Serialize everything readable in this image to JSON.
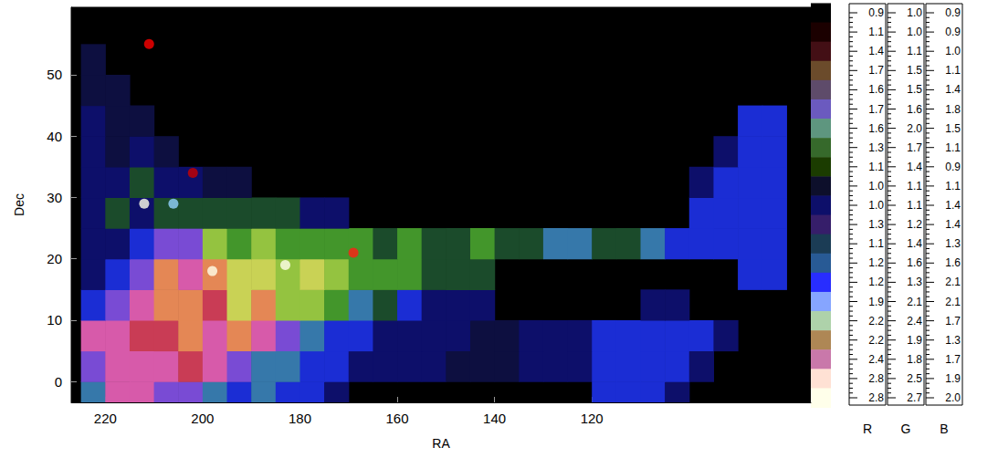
{
  "chart_data": {
    "type": "heatmap",
    "x_label": "RA",
    "y_label": "Dec",
    "xlim": [
      227,
      75
    ],
    "xticks": [
      220,
      200,
      180,
      160,
      140,
      120
    ],
    "ylim": [
      -3.4,
      61
    ],
    "yticks": [
      0,
      10,
      20,
      30,
      40,
      50
    ],
    "cell_size": 5,
    "cells": [
      [
        222.5,
        -2.5,
        1.3,
        1.8,
        1.7
      ],
      [
        217.5,
        -2.5,
        2.5,
        1.6,
        1.7
      ],
      [
        212.5,
        -2.5,
        2.5,
        1.6,
        1.7
      ],
      [
        207.5,
        -2.5,
        1.8,
        1.5,
        1.9
      ],
      [
        202.5,
        -2.5,
        1.8,
        1.5,
        1.9
      ],
      [
        197.5,
        -2.5,
        1.3,
        1.8,
        1.7
      ],
      [
        192.5,
        -2.5,
        1.1,
        1.3,
        1.9
      ],
      [
        187.5,
        -2.5,
        1.3,
        1.8,
        1.7
      ],
      [
        182.5,
        -2.5,
        1.1,
        1.3,
        1.9
      ],
      [
        177.5,
        -2.5,
        1.1,
        1.3,
        1.9
      ],
      [
        172.5,
        -2.5,
        1.0,
        1.1,
        1.4
      ],
      [
        117.5,
        -2.5,
        1.1,
        1.3,
        1.9
      ],
      [
        112.5,
        -2.5,
        1.1,
        1.3,
        1.9
      ],
      [
        107.5,
        -2.5,
        1.1,
        1.3,
        1.9
      ],
      [
        102.5,
        -2.5,
        1.0,
        1.1,
        1.4
      ],
      [
        222.5,
        2.5,
        1.8,
        1.5,
        1.9
      ],
      [
        217.5,
        2.5,
        2.5,
        1.6,
        1.7
      ],
      [
        212.5,
        2.5,
        2.5,
        1.6,
        1.7
      ],
      [
        207.5,
        2.5,
        2.5,
        1.6,
        1.7
      ],
      [
        202.5,
        2.5,
        2.4,
        1.4,
        1.3
      ],
      [
        197.5,
        2.5,
        2.5,
        1.6,
        1.7
      ],
      [
        192.5,
        2.5,
        1.8,
        1.5,
        1.9
      ],
      [
        187.5,
        2.5,
        1.3,
        1.8,
        1.7
      ],
      [
        182.5,
        2.5,
        1.3,
        1.8,
        1.7
      ],
      [
        177.5,
        2.5,
        1.1,
        1.3,
        1.9
      ],
      [
        172.5,
        2.5,
        1.1,
        1.3,
        1.9
      ],
      [
        167.5,
        2.5,
        1.0,
        1.1,
        1.4
      ],
      [
        162.5,
        2.5,
        1.0,
        1.1,
        1.4
      ],
      [
        157.5,
        2.5,
        1.0,
        1.1,
        1.4
      ],
      [
        152.5,
        2.5,
        1.0,
        1.1,
        1.4
      ],
      [
        147.5,
        2.5,
        1.0,
        1.1,
        1.2
      ],
      [
        142.5,
        2.5,
        1.0,
        1.1,
        1.2
      ],
      [
        137.5,
        2.5,
        1.0,
        1.1,
        1.2
      ],
      [
        132.5,
        2.5,
        1.0,
        1.1,
        1.4
      ],
      [
        127.5,
        2.5,
        1.0,
        1.1,
        1.4
      ],
      [
        122.5,
        2.5,
        1.0,
        1.1,
        1.4
      ],
      [
        117.5,
        2.5,
        1.1,
        1.3,
        1.9
      ],
      [
        112.5,
        2.5,
        1.1,
        1.3,
        1.9
      ],
      [
        107.5,
        2.5,
        1.1,
        1.3,
        1.9
      ],
      [
        102.5,
        2.5,
        1.1,
        1.3,
        1.9
      ],
      [
        97.5,
        2.5,
        1.0,
        1.1,
        1.4
      ],
      [
        222.5,
        7.5,
        2.5,
        1.6,
        1.7
      ],
      [
        217.5,
        7.5,
        2.5,
        1.6,
        1.7
      ],
      [
        212.5,
        7.5,
        2.4,
        1.4,
        1.3
      ],
      [
        207.5,
        7.5,
        2.4,
        1.4,
        1.3
      ],
      [
        202.5,
        7.5,
        2.6,
        1.9,
        1.3
      ],
      [
        197.5,
        7.5,
        2.5,
        1.6,
        1.7
      ],
      [
        192.5,
        7.5,
        2.6,
        1.9,
        1.3
      ],
      [
        187.5,
        7.5,
        2.5,
        1.6,
        1.7
      ],
      [
        182.5,
        7.5,
        1.8,
        1.5,
        1.9
      ],
      [
        177.5,
        7.5,
        1.3,
        1.8,
        1.7
      ],
      [
        172.5,
        7.5,
        1.1,
        1.3,
        1.9
      ],
      [
        167.5,
        7.5,
        1.1,
        1.3,
        1.9
      ],
      [
        162.5,
        7.5,
        1.0,
        1.1,
        1.4
      ],
      [
        157.5,
        7.5,
        1.0,
        1.1,
        1.4
      ],
      [
        152.5,
        7.5,
        1.0,
        1.1,
        1.4
      ],
      [
        147.5,
        7.5,
        1.0,
        1.1,
        1.4
      ],
      [
        142.5,
        7.5,
        1.0,
        1.1,
        1.2
      ],
      [
        137.5,
        7.5,
        1.0,
        1.1,
        1.2
      ],
      [
        132.5,
        7.5,
        1.0,
        1.1,
        1.4
      ],
      [
        127.5,
        7.5,
        1.0,
        1.1,
        1.4
      ],
      [
        122.5,
        7.5,
        1.0,
        1.1,
        1.4
      ],
      [
        117.5,
        7.5,
        1.1,
        1.3,
        1.9
      ],
      [
        112.5,
        7.5,
        1.1,
        1.3,
        1.9
      ],
      [
        107.5,
        7.5,
        1.1,
        1.3,
        1.9
      ],
      [
        102.5,
        7.5,
        1.1,
        1.3,
        1.9
      ],
      [
        97.5,
        7.5,
        1.1,
        1.3,
        1.9
      ],
      [
        92.5,
        7.5,
        1.0,
        1.1,
        1.4
      ],
      [
        222.5,
        12.5,
        1.1,
        1.3,
        1.9
      ],
      [
        217.5,
        12.5,
        1.8,
        1.5,
        1.9
      ],
      [
        212.5,
        12.5,
        2.5,
        1.6,
        1.7
      ],
      [
        207.5,
        12.5,
        2.6,
        1.9,
        1.3
      ],
      [
        202.5,
        12.5,
        2.6,
        1.9,
        1.3
      ],
      [
        197.5,
        12.5,
        2.4,
        1.4,
        1.3
      ],
      [
        192.5,
        12.5,
        2.4,
        2.4,
        1.3
      ],
      [
        187.5,
        12.5,
        2.6,
        1.9,
        1.3
      ],
      [
        182.5,
        12.5,
        2.0,
        2.3,
        1.2
      ],
      [
        177.5,
        12.5,
        2.0,
        2.3,
        1.2
      ],
      [
        172.5,
        12.5,
        1.4,
        2.0,
        1.1
      ],
      [
        167.5,
        12.5,
        1.3,
        1.8,
        1.7
      ],
      [
        162.5,
        12.5,
        1.1,
        1.5,
        1.1
      ],
      [
        157.5,
        12.5,
        1.1,
        1.3,
        1.9
      ],
      [
        152.5,
        12.5,
        1.0,
        1.1,
        1.4
      ],
      [
        147.5,
        12.5,
        1.0,
        1.1,
        1.4
      ],
      [
        142.5,
        12.5,
        1.0,
        1.1,
        1.4
      ],
      [
        107.5,
        12.5,
        1.0,
        1.1,
        1.4
      ],
      [
        102.5,
        12.5,
        1.0,
        1.1,
        1.4
      ],
      [
        222.5,
        17.5,
        1.0,
        1.1,
        1.4
      ],
      [
        217.5,
        17.5,
        1.1,
        1.3,
        1.9
      ],
      [
        212.5,
        17.5,
        1.8,
        1.5,
        1.9
      ],
      [
        207.5,
        17.5,
        2.6,
        1.9,
        1.3
      ],
      [
        202.5,
        17.5,
        2.5,
        1.6,
        1.7
      ],
      [
        197.5,
        17.5,
        2.6,
        1.9,
        1.3
      ],
      [
        192.5,
        17.5,
        2.4,
        2.4,
        1.3
      ],
      [
        187.5,
        17.5,
        2.4,
        2.4,
        1.3
      ],
      [
        182.5,
        17.5,
        2.0,
        2.3,
        1.2
      ],
      [
        177.5,
        17.5,
        2.4,
        2.4,
        1.3
      ],
      [
        172.5,
        17.5,
        2.0,
        2.3,
        1.2
      ],
      [
        167.5,
        17.5,
        1.4,
        2.0,
        1.1
      ],
      [
        162.5,
        17.5,
        1.4,
        2.0,
        1.1
      ],
      [
        157.5,
        17.5,
        1.4,
        2.0,
        1.1
      ],
      [
        152.5,
        17.5,
        1.1,
        1.5,
        1.1
      ],
      [
        147.5,
        17.5,
        1.1,
        1.5,
        1.1
      ],
      [
        142.5,
        17.5,
        1.1,
        1.5,
        1.1
      ],
      [
        87.5,
        17.5,
        1.1,
        1.3,
        1.9
      ],
      [
        82.5,
        17.5,
        1.1,
        1.3,
        1.9
      ],
      [
        222.5,
        22.5,
        1.0,
        1.1,
        1.4
      ],
      [
        217.5,
        22.5,
        1.0,
        1.1,
        1.4
      ],
      [
        212.5,
        22.5,
        1.1,
        1.3,
        1.9
      ],
      [
        207.5,
        22.5,
        1.8,
        1.5,
        1.9
      ],
      [
        202.5,
        22.5,
        1.8,
        1.5,
        1.9
      ],
      [
        197.5,
        22.5,
        2.0,
        2.3,
        1.2
      ],
      [
        192.5,
        22.5,
        1.4,
        2.0,
        1.1
      ],
      [
        187.5,
        22.5,
        2.0,
        2.3,
        1.2
      ],
      [
        182.5,
        22.5,
        1.4,
        2.0,
        1.1
      ],
      [
        177.5,
        22.5,
        1.4,
        2.0,
        1.1
      ],
      [
        172.5,
        22.5,
        1.4,
        2.0,
        1.1
      ],
      [
        167.5,
        22.5,
        1.4,
        2.0,
        1.1
      ],
      [
        162.5,
        22.5,
        1.1,
        1.5,
        1.1
      ],
      [
        157.5,
        22.5,
        1.4,
        2.0,
        1.1
      ],
      [
        152.5,
        22.5,
        1.1,
        1.5,
        1.1
      ],
      [
        147.5,
        22.5,
        1.1,
        1.5,
        1.1
      ],
      [
        142.5,
        22.5,
        1.4,
        2.0,
        1.1
      ],
      [
        137.5,
        22.5,
        1.1,
        1.5,
        1.1
      ],
      [
        132.5,
        22.5,
        1.1,
        1.5,
        1.1
      ],
      [
        127.5,
        22.5,
        1.3,
        1.8,
        1.7
      ],
      [
        122.5,
        22.5,
        1.3,
        1.8,
        1.7
      ],
      [
        117.5,
        22.5,
        1.1,
        1.5,
        1.1
      ],
      [
        112.5,
        22.5,
        1.1,
        1.5,
        1.1
      ],
      [
        107.5,
        22.5,
        1.3,
        1.8,
        1.7
      ],
      [
        102.5,
        22.5,
        1.1,
        1.3,
        1.9
      ],
      [
        97.5,
        22.5,
        1.1,
        1.3,
        1.9
      ],
      [
        92.5,
        22.5,
        1.1,
        1.3,
        1.9
      ],
      [
        87.5,
        22.5,
        1.1,
        1.3,
        1.9
      ],
      [
        82.5,
        22.5,
        1.1,
        1.3,
        1.9
      ],
      [
        222.5,
        27.5,
        1.0,
        1.1,
        1.4
      ],
      [
        217.5,
        27.5,
        1.1,
        1.5,
        1.1
      ],
      [
        212.5,
        27.5,
        1.0,
        1.1,
        1.4
      ],
      [
        207.5,
        27.5,
        1.1,
        1.5,
        1.1
      ],
      [
        202.5,
        27.5,
        1.1,
        1.5,
        1.1
      ],
      [
        197.5,
        27.5,
        1.1,
        1.5,
        1.1
      ],
      [
        192.5,
        27.5,
        1.1,
        1.5,
        1.1
      ],
      [
        187.5,
        27.5,
        1.1,
        1.5,
        1.1
      ],
      [
        182.5,
        27.5,
        1.1,
        1.5,
        1.1
      ],
      [
        177.5,
        27.5,
        1.0,
        1.1,
        1.4
      ],
      [
        172.5,
        27.5,
        1.0,
        1.1,
        1.4
      ],
      [
        97.5,
        27.5,
        1.1,
        1.3,
        1.9
      ],
      [
        92.5,
        27.5,
        1.1,
        1.3,
        1.9
      ],
      [
        87.5,
        27.5,
        1.1,
        1.3,
        1.9
      ],
      [
        82.5,
        27.5,
        1.1,
        1.3,
        1.9
      ],
      [
        222.5,
        32.5,
        1.0,
        1.1,
        1.4
      ],
      [
        217.5,
        32.5,
        1.0,
        1.1,
        1.4
      ],
      [
        212.5,
        32.5,
        1.1,
        1.5,
        1.1
      ],
      [
        207.5,
        32.5,
        1.0,
        1.1,
        1.4
      ],
      [
        202.5,
        32.5,
        1.0,
        1.1,
        1.4
      ],
      [
        197.5,
        32.5,
        1.0,
        1.1,
        1.2
      ],
      [
        192.5,
        32.5,
        1.0,
        1.1,
        1.2
      ],
      [
        97.5,
        32.5,
        1.0,
        1.1,
        1.4
      ],
      [
        92.5,
        32.5,
        1.1,
        1.3,
        1.9
      ],
      [
        87.5,
        32.5,
        1.1,
        1.3,
        1.9
      ],
      [
        82.5,
        32.5,
        1.1,
        1.3,
        1.9
      ],
      [
        222.5,
        37.5,
        1.0,
        1.1,
        1.4
      ],
      [
        217.5,
        37.5,
        1.0,
        1.1,
        1.2
      ],
      [
        212.5,
        37.5,
        1.0,
        1.1,
        1.4
      ],
      [
        207.5,
        37.5,
        1.0,
        1.1,
        1.2
      ],
      [
        92.5,
        37.5,
        1.0,
        1.1,
        1.4
      ],
      [
        87.5,
        37.5,
        1.1,
        1.3,
        1.9
      ],
      [
        82.5,
        37.5,
        1.1,
        1.3,
        1.9
      ],
      [
        222.5,
        42.5,
        1.0,
        1.1,
        1.4
      ],
      [
        217.5,
        42.5,
        1.0,
        1.1,
        1.2
      ],
      [
        212.5,
        42.5,
        1.0,
        1.1,
        1.2
      ],
      [
        87.5,
        42.5,
        1.1,
        1.3,
        1.9
      ],
      [
        82.5,
        42.5,
        1.1,
        1.3,
        1.9
      ],
      [
        222.5,
        47.5,
        1.0,
        1.1,
        1.2
      ],
      [
        217.5,
        47.5,
        1.0,
        1.1,
        1.2
      ],
      [
        222.5,
        52.5,
        1.0,
        1.1,
        1.2
      ]
    ],
    "sources": [
      [
        212,
        29,
        2.8,
        2.7,
        2.0
      ],
      [
        206,
        29,
        2.0,
        2.4,
        2.1
      ],
      [
        198,
        18,
        2.8,
        2.7,
        2.0
      ],
      [
        183,
        19,
        2.8,
        2.7,
        2.0
      ],
      [
        211,
        55,
        2.8,
        1.0,
        0.9
      ],
      [
        202,
        34,
        2.4,
        1.0,
        0.9
      ],
      [
        169,
        21,
        2.8,
        1.2,
        1.0
      ]
    ],
    "colorbar": {
      "channels": [
        "R",
        "G",
        "B"
      ],
      "rows": [
        [
          0.9,
          {
            "value": 1,
            "label": "1.0"
          },
          0.9
        ],
        [
          1.1,
          {
            "value": 1,
            "label": "1.0"
          },
          0.9
        ],
        [
          1.4,
          1.1,
          {
            "value": 1,
            "label": "1.0"
          }
        ],
        [
          1.7,
          1.5,
          1.1
        ],
        [
          1.6,
          1.5,
          1.4
        ],
        [
          1.7,
          1.6,
          1.8
        ],
        [
          1.6,
          {
            "value": 2,
            "label": "2.0"
          },
          1.5
        ],
        [
          1.3,
          1.7,
          1.1
        ],
        [
          1.1,
          1.4,
          0.9
        ],
        [
          {
            "value": 1,
            "label": "1.0"
          },
          1.1,
          1.1
        ],
        [
          {
            "value": 1,
            "label": "1.0"
          },
          1.1,
          1.4
        ],
        [
          1.3,
          1.2,
          1.4
        ],
        [
          1.1,
          1.4,
          1.3
        ],
        [
          1.2,
          1.6,
          1.6
        ],
        [
          1.2,
          1.3,
          2.1
        ],
        [
          1.9,
          2.1,
          2.1
        ],
        [
          2.2,
          2.4,
          1.7
        ],
        [
          2.2,
          1.9,
          1.3
        ],
        [
          2.4,
          1.8,
          1.7
        ],
        [
          2.8,
          2.5,
          1.9
        ],
        [
          2.8,
          2.7,
          {
            "value": 2,
            "label": "2.0"
          }
        ]
      ]
    }
  }
}
